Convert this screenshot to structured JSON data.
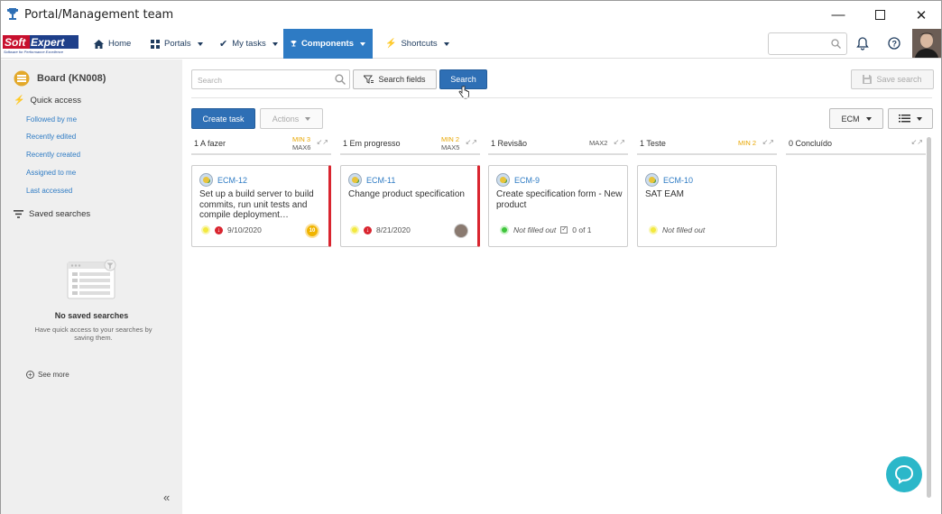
{
  "window": {
    "title": "Portal/Management team"
  },
  "logo": {
    "text_soft": "Soft",
    "text_expert": "Expert",
    "tagline": "Software for Performance Excellence"
  },
  "nav": {
    "home": "Home",
    "portals": "Portals",
    "my_tasks": "My tasks",
    "components": "Components",
    "shortcuts": "Shortcuts"
  },
  "sidebar": {
    "board_title": "Board (KN008)",
    "quick_access": "Quick access",
    "links": [
      "Followed by me",
      "Recently edited",
      "Recently created",
      "Assigned to me",
      "Last accessed"
    ],
    "saved_searches": "Saved searches",
    "empty_title": "No saved searches",
    "empty_desc": "Have quick access to your searches by saving them.",
    "see_more": "See more"
  },
  "toolbar": {
    "search_placeholder": "Search",
    "search_fields": "Search fields",
    "search": "Search",
    "save_search": "Save search",
    "create_task": "Create task",
    "actions": "Actions",
    "ecm": "ECM"
  },
  "columns": [
    {
      "name": "1 A fazer",
      "min": "MIN 3",
      "max": "MAX6"
    },
    {
      "name": "1 Em progresso",
      "min": "MIN 2",
      "max": "MAX5"
    },
    {
      "name": "1 Revisão",
      "min": "",
      "max": "MAX2"
    },
    {
      "name": "1 Teste",
      "min": "MIN 2",
      "max": ""
    },
    {
      "name": "0 Concluído",
      "min": "",
      "max": ""
    }
  ],
  "cards": [
    {
      "key": "ECM-12",
      "title": "Set up a build server to build commits, run unit tests and compile deployment…",
      "date": "9/10/2020",
      "badge": "10"
    },
    {
      "key": "ECM-11",
      "title": "Change product specification",
      "date": "8/21/2020"
    },
    {
      "key": "ECM-9",
      "title": "Create specification form - New product",
      "status": "Not filled out",
      "checklist": "0 of 1"
    },
    {
      "key": "ECM-10",
      "title": "SAT EAM",
      "status": "Not filled out"
    }
  ],
  "colors": {
    "accent": "#2e7bc4",
    "primary_button": "#2e6fb5",
    "alert_border": "#d9252f",
    "min_color": "#e8a600",
    "chat": "#2bb7c9"
  }
}
